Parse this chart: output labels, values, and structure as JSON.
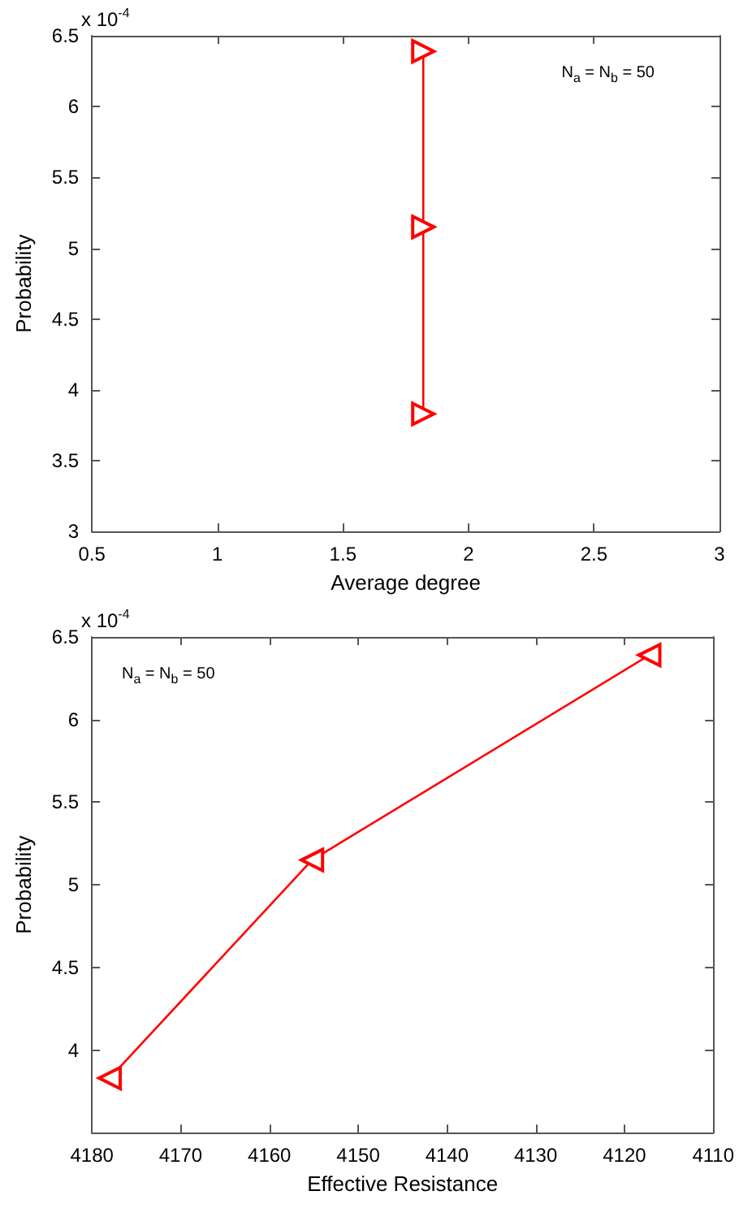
{
  "chart_data": [
    {
      "type": "line",
      "x": [
        1.82,
        1.82,
        1.82
      ],
      "values": [
        6.39,
        5.15,
        3.83
      ],
      "color": "#ff0000",
      "marker": "triangle",
      "xlabel": "Average degree",
      "ylabel": "Probability",
      "xlim": [
        0.5,
        3
      ],
      "xticks": [
        0.5,
        1,
        1.5,
        2,
        2.5,
        3
      ],
      "ylim": [
        3,
        6.5
      ],
      "yticks": [
        3,
        3.5,
        4,
        4.5,
        5,
        5.5,
        6,
        6.5
      ],
      "annotations": [
        "x 10$^{-4}$",
        "N$_{a}$ = N$_{b}$ = 50"
      ],
      "grid": false
    },
    {
      "type": "line",
      "x": [
        4178,
        4155.2,
        4117.2
      ],
      "values": [
        3.83,
        5.15,
        6.39
      ],
      "color": "#ff0000",
      "marker": "triangle",
      "xlabel": "Effective Resistance",
      "ylabel": "Probability",
      "xlim": [
        4180,
        4110
      ],
      "xticks": [
        4180,
        4170,
        4160,
        4150,
        4140,
        4130,
        4120,
        4110
      ],
      "ylim": [
        3.5,
        6.5
      ],
      "yticks": [
        4,
        4.5,
        5,
        5.5,
        6,
        6.5
      ],
      "annotations": [
        "x 10$^{-4}$",
        "N$_{a}$ = N$_{b}$ = 50"
      ],
      "grid": false
    }
  ]
}
